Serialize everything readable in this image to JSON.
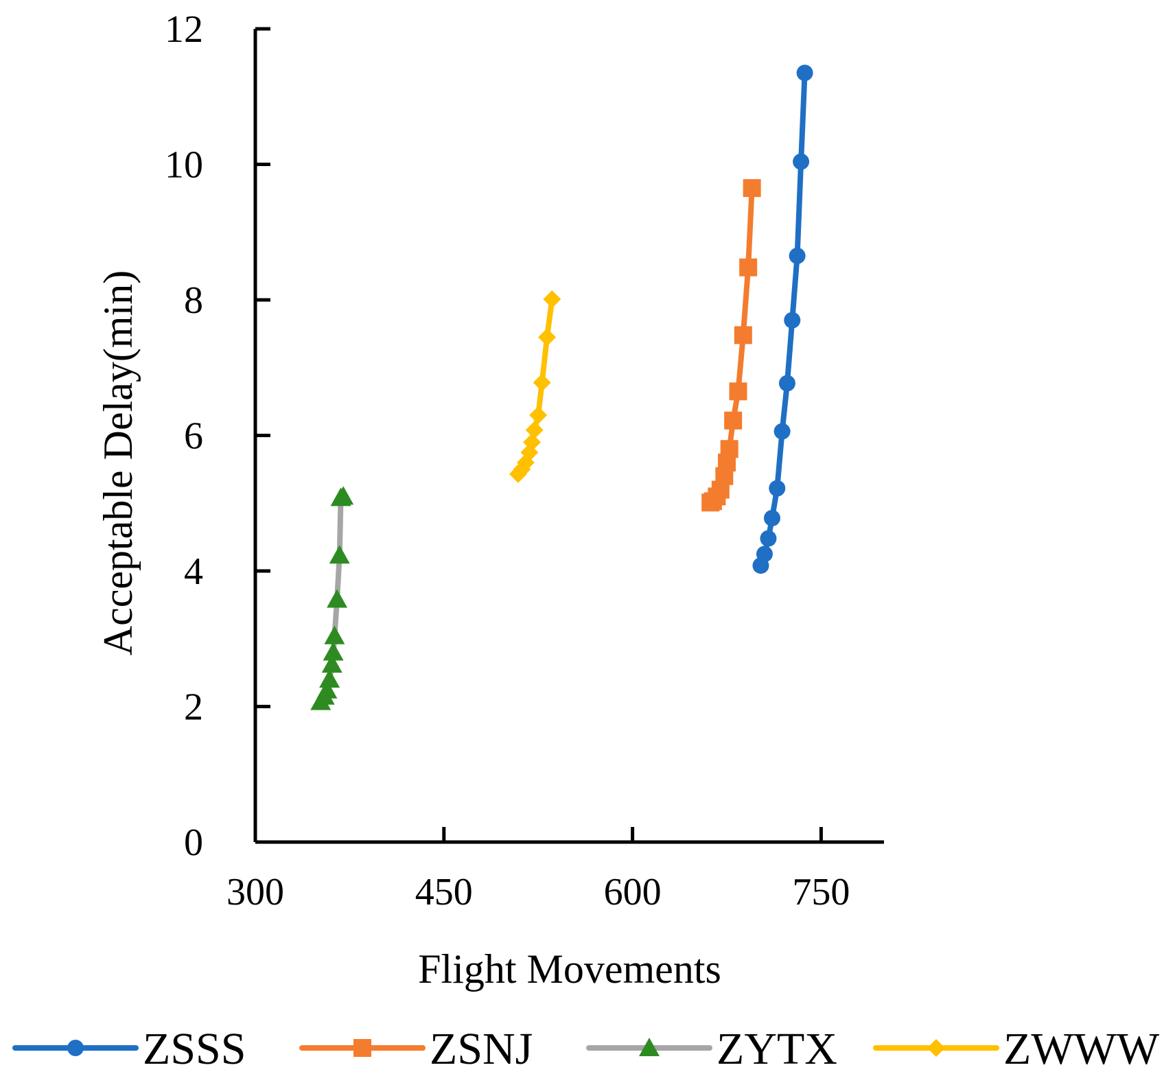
{
  "chart_data": {
    "type": "line",
    "title": "",
    "xlabel": "Flight Movements",
    "ylabel": "Acceptable Delay(min)",
    "xlim": [
      300,
      800
    ],
    "ylim": [
      0,
      12
    ],
    "xticks": [
      300,
      450,
      600,
      750
    ],
    "yticks": [
      0,
      2,
      4,
      6,
      8,
      10,
      12
    ],
    "grid": false,
    "legend_position": "bottom",
    "series": [
      {
        "name": "ZSSS",
        "color": "#1F6FC5",
        "marker": "circle",
        "x": [
          702,
          705,
          708,
          711,
          715,
          719,
          723,
          727,
          731,
          734,
          737
        ],
        "y": [
          4.08,
          4.25,
          4.48,
          4.78,
          5.22,
          6.06,
          6.77,
          7.7,
          8.65,
          10.04,
          11.35
        ]
      },
      {
        "name": "ZSNJ",
        "color": "#F47C2E",
        "marker": "square",
        "x": [
          662,
          664,
          667,
          670,
          673,
          675,
          677,
          680,
          684,
          688,
          692,
          695
        ],
        "y": [
          5.01,
          5.03,
          5.1,
          5.2,
          5.4,
          5.6,
          5.8,
          6.22,
          6.65,
          7.48,
          8.48,
          9.65
        ]
      },
      {
        "name": "ZYTX",
        "color": "#A6A6A6",
        "marker": "triangle",
        "markerColor": "#2E8B22",
        "x": [
          352,
          355,
          357,
          359,
          361,
          362,
          363,
          365,
          367,
          368,
          370
        ],
        "y": [
          2.07,
          2.15,
          2.24,
          2.4,
          2.62,
          2.8,
          3.04,
          3.58,
          4.23,
          5.08,
          5.1
        ]
      },
      {
        "name": "ZWWW",
        "color": "#FFC000",
        "marker": "diamond",
        "x": [
          509,
          512,
          515,
          518,
          520,
          522,
          525,
          528,
          532,
          536
        ],
        "y": [
          5.43,
          5.5,
          5.6,
          5.75,
          5.9,
          6.08,
          6.3,
          6.78,
          7.45,
          8.01
        ]
      }
    ]
  }
}
